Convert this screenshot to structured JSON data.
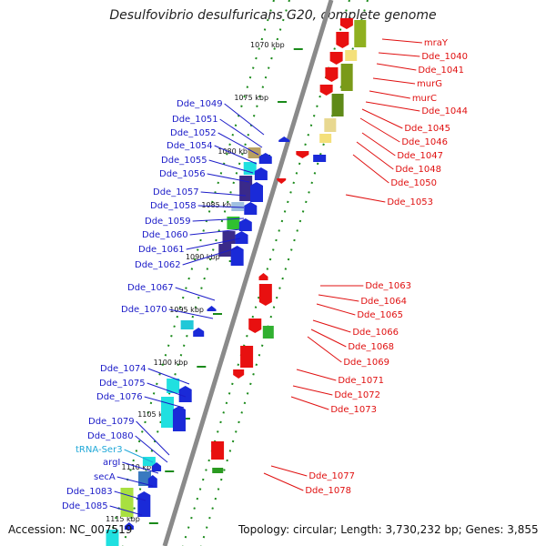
{
  "title": "Desulfovibrio desulfuricans G20, complete genome",
  "accession": "Accession: NC_007519",
  "topology": "Topology: circular; Length: 3,730,232 bp; Genes: 3,855",
  "colors": {
    "left_label": "#1c1cc8",
    "right_label": "#e01010",
    "trna_label": "#20a8d8",
    "backbone": "#8a8a8a",
    "tick": "#1a8a1a"
  },
  "ticks": [
    "1070 kbp",
    "1075 kbp",
    "1080 kbp",
    "1085 kbp",
    "1090 kbp",
    "1095 kbp",
    "1100 kbp",
    "1105 kbp",
    "1110 kbp",
    "1115 kbp"
  ],
  "left_labels": [
    "Dde_1049",
    "Dde_1051",
    "Dde_1052",
    "Dde_1054",
    "Dde_1055",
    "Dde_1056",
    "Dde_1057",
    "Dde_1058",
    "Dde_1059",
    "Dde_1060",
    "Dde_1061",
    "Dde_1062",
    "Dde_1067",
    "Dde_1070",
    "Dde_1074",
    "Dde_1075",
    "Dde_1076",
    "Dde_1079",
    "Dde_1080",
    "tRNA-Ser3",
    "argI",
    "secA",
    "Dde_1083",
    "Dde_1085"
  ],
  "right_labels": [
    "mraY",
    "Dde_1040",
    "Dde_1041",
    "murG",
    "murC",
    "Dde_1044",
    "Dde_1045",
    "Dde_1046",
    "Dde_1047",
    "Dde_1048",
    "Dde_1050",
    "Dde_1053",
    "Dde_1063",
    "Dde_1064",
    "Dde_1065",
    "Dde_1066",
    "Dde_1068",
    "Dde_1069",
    "Dde_1071",
    "Dde_1072",
    "Dde_1073",
    "Dde_1077",
    "Dde_1078"
  ]
}
